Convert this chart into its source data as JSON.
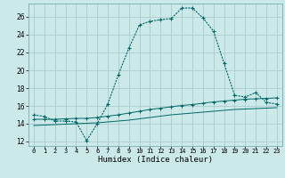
{
  "xlabel": "Humidex (Indice chaleur)",
  "background_color": "#cce9e9",
  "grid_color": "#aacccc",
  "line_color": "#006666",
  "xlim": [
    -0.5,
    23.5
  ],
  "ylim": [
    11.5,
    27.5
  ],
  "x_ticks": [
    0,
    1,
    2,
    3,
    4,
    5,
    6,
    7,
    8,
    9,
    10,
    11,
    12,
    13,
    14,
    15,
    16,
    17,
    18,
    19,
    20,
    21,
    22,
    23
  ],
  "y_ticks": [
    12,
    14,
    16,
    18,
    20,
    22,
    24,
    26
  ],
  "line1_x": [
    0,
    1,
    2,
    3,
    4,
    5,
    6,
    7,
    8,
    9,
    10,
    11,
    12,
    13,
    14,
    15,
    16,
    17,
    18,
    19,
    20,
    21,
    22,
    23
  ],
  "line1_y": [
    15.0,
    14.8,
    14.3,
    14.3,
    14.2,
    12.1,
    14.0,
    16.2,
    19.5,
    22.5,
    25.1,
    25.5,
    25.7,
    25.8,
    27.0,
    27.0,
    25.9,
    24.4,
    20.8,
    17.2,
    17.0,
    17.5,
    16.4,
    16.2
  ],
  "line2_x": [
    0,
    1,
    2,
    3,
    4,
    5,
    6,
    7,
    8,
    9,
    10,
    11,
    12,
    13,
    14,
    15,
    16,
    17,
    18,
    19,
    20,
    21,
    22,
    23
  ],
  "line2_y": [
    13.8,
    13.85,
    13.9,
    13.95,
    14.0,
    14.05,
    14.1,
    14.2,
    14.3,
    14.4,
    14.55,
    14.7,
    14.85,
    15.0,
    15.1,
    15.2,
    15.3,
    15.4,
    15.5,
    15.6,
    15.65,
    15.7,
    15.75,
    15.8
  ],
  "line3_x": [
    0,
    1,
    2,
    3,
    4,
    5,
    6,
    7,
    8,
    9,
    10,
    11,
    12,
    13,
    14,
    15,
    16,
    17,
    18,
    19,
    20,
    21,
    22,
    23
  ],
  "line3_y": [
    14.5,
    14.5,
    14.5,
    14.55,
    14.6,
    14.6,
    14.7,
    14.85,
    15.0,
    15.2,
    15.4,
    15.6,
    15.75,
    15.9,
    16.05,
    16.15,
    16.3,
    16.45,
    16.55,
    16.65,
    16.75,
    16.8,
    16.85,
    16.9
  ]
}
